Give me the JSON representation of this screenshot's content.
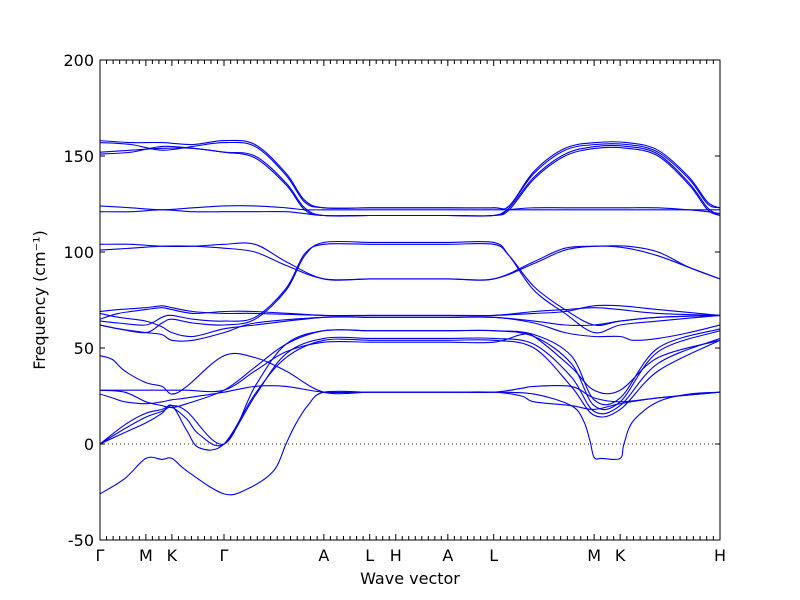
{
  "chart_data": {
    "type": "line",
    "title": "",
    "xlabel": "Wave vector",
    "ylabel": "Frequency (cm⁻¹)",
    "ylim": [
      -50,
      200
    ],
    "yticks": [
      -50,
      0,
      50,
      100,
      150,
      200
    ],
    "xlim": [
      0,
      1
    ],
    "xticks": [
      {
        "label": "Γ",
        "x": 0.0
      },
      {
        "label": "M",
        "x": 0.074
      },
      {
        "label": "K",
        "x": 0.116
      },
      {
        "label": "Γ",
        "x": 0.2
      },
      {
        "label": "A",
        "x": 0.361
      },
      {
        "label": "L",
        "x": 0.435
      },
      {
        "label": "H",
        "x": 0.477
      },
      {
        "label": "A",
        "x": 0.561
      },
      {
        "label": "L",
        "x": 0.635
      },
      {
        "label": "M",
        "x": 0.797
      },
      {
        "label": "K",
        "x": 0.839
      },
      {
        "label": "H",
        "x": 1.0
      }
    ],
    "grid": false,
    "zero_line": true,
    "series_color": "#0000ee",
    "series": [
      {
        "x": [
          0,
          0.04,
          0.074,
          0.1,
          0.116,
          0.14,
          0.2,
          0.24,
          0.28,
          0.3,
          0.315,
          0.335,
          0.361,
          0.435,
          0.477,
          0.561,
          0.635,
          0.7,
          0.76,
          0.78,
          0.79,
          0.797,
          0.81,
          0.839,
          0.845,
          0.86,
          0.9,
          0.95,
          1.0
        ],
        "y": [
          -26,
          -18,
          -7.5,
          -8,
          -7.5,
          -14,
          -26,
          -23,
          -14,
          0,
          10,
          20,
          27,
          27,
          27,
          27,
          27,
          26,
          20,
          12,
          2,
          -7,
          -7.5,
          -7.5,
          0,
          12,
          22,
          26,
          27
        ]
      },
      {
        "x": [
          0,
          0.04,
          0.074,
          0.1,
          0.116,
          0.14,
          0.16,
          0.2,
          0.25,
          0.3,
          0.361,
          0.435,
          0.477,
          0.561,
          0.635,
          0.7,
          0.76,
          0.797,
          0.839,
          0.9,
          1.0
        ],
        "y": [
          0,
          6,
          11,
          16,
          20,
          7,
          -2,
          0,
          26,
          45,
          54,
          54,
          54,
          54,
          54,
          50,
          30,
          15,
          18,
          38,
          54
        ]
      },
      {
        "x": [
          0,
          0.04,
          0.074,
          0.1,
          0.116,
          0.14,
          0.16,
          0.2,
          0.25,
          0.3,
          0.361,
          0.435,
          0.477,
          0.561,
          0.635,
          0.7,
          0.76,
          0.797,
          0.839,
          0.9,
          1.0
        ],
        "y": [
          0,
          8,
          14,
          17,
          19,
          13,
          5,
          0,
          25,
          47,
          55,
          55,
          55,
          55,
          55,
          52,
          35,
          17,
          20,
          42,
          55
        ]
      },
      {
        "x": [
          0,
          0.04,
          0.074,
          0.1,
          0.116,
          0.14,
          0.2,
          0.25,
          0.3,
          0.361,
          0.435,
          0.477,
          0.561,
          0.635,
          0.7,
          0.76,
          0.797,
          0.839,
          0.9,
          1.0
        ],
        "y": [
          0,
          10,
          16,
          18,
          20,
          17,
          0,
          30,
          52,
          59,
          59,
          59,
          59,
          59,
          56,
          42,
          20,
          22,
          48,
          59
        ]
      },
      {
        "x": [
          0,
          0.04,
          0.074,
          0.1,
          0.116,
          0.14,
          0.2,
          0.25,
          0.3,
          0.361,
          0.435,
          0.477,
          0.561,
          0.635,
          0.7,
          0.76,
          0.797,
          0.839,
          0.9,
          1.0
        ],
        "y": [
          28,
          27,
          22,
          20,
          19,
          21,
          28,
          40,
          52,
          59,
          59,
          59,
          59,
          59,
          57,
          46,
          23,
          24,
          50,
          60
        ]
      },
      {
        "x": [
          0,
          0.04,
          0.074,
          0.1,
          0.116,
          0.14,
          0.2,
          0.25,
          0.3,
          0.361,
          0.435,
          0.477,
          0.561,
          0.635,
          0.68,
          0.7,
          0.76,
          0.797,
          0.839,
          0.9,
          1.0
        ],
        "y": [
          28,
          28,
          28,
          28,
          28,
          28,
          28,
          38,
          48,
          53,
          53,
          53,
          53,
          53,
          57,
          56,
          40,
          28,
          28,
          45,
          54
        ]
      },
      {
        "x": [
          0,
          0.02,
          0.04,
          0.074,
          0.1,
          0.116,
          0.14,
          0.2,
          0.25,
          0.3,
          0.361,
          0.435,
          0.477,
          0.561,
          0.635,
          0.68,
          0.7,
          0.76,
          0.797,
          0.839,
          0.9,
          1.0
        ],
        "y": [
          46,
          44,
          38,
          32,
          30,
          26,
          30,
          46,
          45,
          38,
          27,
          27,
          27,
          27,
          27,
          29,
          30,
          30,
          24,
          22,
          24,
          27
        ]
      },
      {
        "x": [
          0,
          0.02,
          0.04,
          0.074,
          0.1,
          0.116,
          0.14,
          0.2,
          0.25,
          0.3,
          0.361,
          0.435,
          0.477,
          0.561,
          0.635,
          0.68,
          0.7,
          0.76,
          0.797,
          0.839,
          0.9,
          1.0
        ],
        "y": [
          26,
          24,
          22,
          21,
          22,
          23,
          24,
          27,
          30,
          30,
          27,
          27,
          27,
          27,
          27,
          25,
          22,
          20,
          18,
          21,
          24,
          27
        ]
      },
      {
        "x": [
          0,
          0.03,
          0.074,
          0.1,
          0.116,
          0.15,
          0.2,
          0.25,
          0.3,
          0.33,
          0.361,
          0.435,
          0.477,
          0.561,
          0.635,
          0.66,
          0.7,
          0.75,
          0.797,
          0.839,
          0.9,
          1.0
        ],
        "y": [
          62,
          60,
          58,
          63,
          65,
          63,
          62,
          65,
          80,
          98,
          105,
          105,
          105,
          105,
          105,
          98,
          80,
          68,
          58,
          62,
          64,
          67
        ]
      },
      {
        "x": [
          0,
          0.03,
          0.074,
          0.1,
          0.116,
          0.15,
          0.2,
          0.25,
          0.3,
          0.33,
          0.361,
          0.435,
          0.477,
          0.561,
          0.635,
          0.66,
          0.7,
          0.75,
          0.797,
          0.839,
          0.9,
          1.0
        ],
        "y": [
          64,
          63,
          62,
          66,
          67,
          65,
          64,
          66,
          81,
          99,
          104,
          104,
          104,
          104,
          104,
          98,
          82,
          70,
          62,
          64,
          66,
          67
        ]
      },
      {
        "x": [
          0,
          0.03,
          0.074,
          0.1,
          0.116,
          0.15,
          0.2,
          0.25,
          0.361,
          0.435,
          0.477,
          0.561,
          0.635,
          0.7,
          0.75,
          0.797,
          0.839,
          0.9,
          1.0
        ],
        "y": [
          65,
          68,
          70,
          71,
          70,
          68,
          69,
          69,
          67,
          67,
          67,
          67,
          67,
          69,
          70,
          71,
          70,
          68,
          67
        ]
      },
      {
        "x": [
          0,
          0.03,
          0.074,
          0.1,
          0.116,
          0.15,
          0.2,
          0.25,
          0.361,
          0.435,
          0.477,
          0.561,
          0.635,
          0.7,
          0.75,
          0.797,
          0.839,
          0.9,
          1.0
        ],
        "y": [
          69,
          70,
          71,
          72,
          71,
          69,
          68,
          68,
          67,
          67,
          67,
          67,
          67,
          68,
          69,
          72,
          72,
          70,
          67
        ]
      },
      {
        "x": [
          0,
          0.03,
          0.074,
          0.1,
          0.116,
          0.15,
          0.2,
          0.25,
          0.361,
          0.435,
          0.477,
          0.561,
          0.635,
          0.7,
          0.75,
          0.797,
          0.839,
          0.9,
          1.0
        ],
        "y": [
          68,
          66,
          64,
          61,
          58,
          56,
          60,
          62,
          66,
          66,
          66,
          66,
          66,
          64,
          62,
          62,
          64,
          66,
          67
        ]
      },
      {
        "x": [
          0,
          0.03,
          0.074,
          0.1,
          0.116,
          0.15,
          0.2,
          0.25,
          0.361,
          0.435,
          0.477,
          0.561,
          0.635,
          0.7,
          0.75,
          0.797,
          0.839,
          0.86,
          0.9,
          0.95,
          1.0
        ],
        "y": [
          62,
          60,
          58,
          57,
          54,
          54,
          58,
          63,
          66,
          66,
          66,
          66,
          66,
          63,
          58,
          56,
          56,
          54,
          55,
          58,
          62
        ]
      },
      {
        "x": [
          0,
          0.05,
          0.1,
          0.15,
          0.2,
          0.25,
          0.3,
          0.361,
          0.435,
          0.477,
          0.561,
          0.635,
          0.7,
          0.75,
          0.8,
          0.85,
          0.9,
          0.95,
          1.0
        ],
        "y": [
          104,
          104,
          103,
          103,
          104,
          104,
          95,
          86,
          86,
          86,
          86,
          86,
          95,
          102,
          103,
          103,
          100,
          92,
          86
        ]
      },
      {
        "x": [
          0,
          0.05,
          0.1,
          0.15,
          0.2,
          0.25,
          0.3,
          0.361,
          0.435,
          0.477,
          0.561,
          0.635,
          0.7,
          0.75,
          0.8,
          0.85,
          0.9,
          0.95,
          1.0
        ],
        "y": [
          101,
          102,
          103,
          103,
          102,
          100,
          93,
          86,
          86,
          86,
          86,
          86,
          94,
          101,
          103,
          102,
          98,
          92,
          86
        ]
      },
      {
        "x": [
          0,
          0.05,
          0.1,
          0.15,
          0.2,
          0.25,
          0.3,
          0.33,
          0.361,
          0.435,
          0.477,
          0.561,
          0.635,
          0.66,
          0.7,
          0.75,
          0.8,
          0.85,
          0.9,
          0.95,
          0.98,
          1.0
        ],
        "y": [
          121,
          121,
          122,
          121,
          121,
          121,
          121,
          120,
          119,
          119,
          119,
          119,
          119,
          122,
          123,
          123,
          123,
          123,
          123,
          122,
          121,
          120
        ]
      },
      {
        "x": [
          0,
          0.05,
          0.1,
          0.15,
          0.2,
          0.25,
          0.3,
          0.33,
          0.361,
          0.435,
          0.477,
          0.561,
          0.635,
          0.66,
          0.7,
          0.75,
          0.8,
          0.85,
          0.9,
          0.95,
          0.98,
          1.0
        ],
        "y": [
          124,
          123,
          122,
          123,
          124,
          124,
          123,
          122,
          122,
          122,
          122,
          122,
          122,
          122,
          122,
          122,
          122,
          122,
          122,
          122,
          122,
          122
        ]
      },
      {
        "x": [
          0,
          0.05,
          0.1,
          0.15,
          0.2,
          0.25,
          0.3,
          0.33,
          0.361,
          0.435,
          0.477,
          0.561,
          0.635,
          0.66,
          0.7,
          0.75,
          0.8,
          0.85,
          0.9,
          0.95,
          0.98,
          1.0
        ],
        "y": [
          151,
          152,
          155,
          154,
          152,
          149,
          135,
          122,
          119,
          119,
          119,
          119,
          119,
          122,
          138,
          150,
          154,
          154,
          150,
          135,
          122,
          119
        ]
      },
      {
        "x": [
          0,
          0.05,
          0.1,
          0.15,
          0.2,
          0.25,
          0.3,
          0.33,
          0.361,
          0.435,
          0.477,
          0.561,
          0.635,
          0.66,
          0.7,
          0.75,
          0.8,
          0.85,
          0.9,
          0.95,
          0.98,
          1.0
        ],
        "y": [
          152,
          153,
          154,
          154,
          152,
          150,
          136,
          123,
          119,
          119,
          119,
          119,
          119,
          123,
          139,
          151,
          155,
          155,
          151,
          136,
          123,
          119
        ]
      },
      {
        "x": [
          0,
          0.05,
          0.1,
          0.15,
          0.2,
          0.25,
          0.3,
          0.33,
          0.361,
          0.435,
          0.477,
          0.561,
          0.635,
          0.66,
          0.7,
          0.75,
          0.8,
          0.85,
          0.9,
          0.95,
          0.98,
          1.0
        ],
        "y": [
          157,
          156,
          153,
          155,
          157,
          155,
          140,
          126,
          123,
          123,
          123,
          123,
          123,
          124,
          141,
          153,
          156,
          156,
          152,
          138,
          125,
          123
        ]
      },
      {
        "x": [
          0,
          0.05,
          0.1,
          0.15,
          0.2,
          0.25,
          0.3,
          0.33,
          0.361,
          0.435,
          0.477,
          0.561,
          0.635,
          0.66,
          0.7,
          0.75,
          0.8,
          0.85,
          0.9,
          0.95,
          0.98,
          1.0
        ],
        "y": [
          158,
          157,
          157,
          156,
          158,
          156,
          141,
          127,
          123,
          123,
          123,
          123,
          123,
          124,
          142,
          154,
          157,
          157,
          153,
          139,
          126,
          123
        ]
      }
    ]
  }
}
